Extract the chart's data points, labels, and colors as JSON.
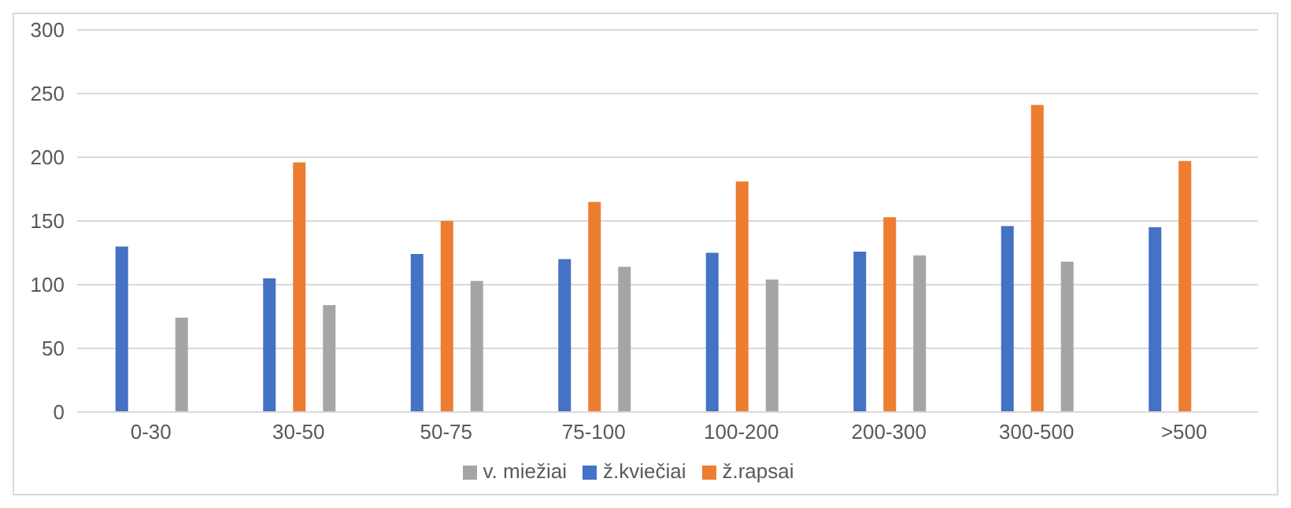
{
  "chart_data": {
    "type": "bar",
    "categories": [
      "0-30",
      "30-50",
      "50-75",
      "75-100",
      "100-200",
      "200-300",
      "300-500",
      ">500"
    ],
    "series": [
      {
        "name": "ž.kviečiai",
        "color": "#4472c4",
        "values": [
          130,
          105,
          124,
          120,
          125,
          126,
          146,
          145
        ]
      },
      {
        "name": "ž.rapsai",
        "color": "#ed7d31",
        "values": [
          null,
          196,
          150,
          165,
          181,
          153,
          241,
          197
        ]
      },
      {
        "name": "v. miežiai",
        "color": "#a5a5a5",
        "values": [
          74,
          84,
          103,
          114,
          104,
          123,
          118,
          null
        ]
      }
    ],
    "ylim": [
      0,
      300
    ],
    "yticks": [
      0,
      50,
      100,
      150,
      200,
      250,
      300
    ],
    "grid": "y",
    "legend": "bottom"
  }
}
